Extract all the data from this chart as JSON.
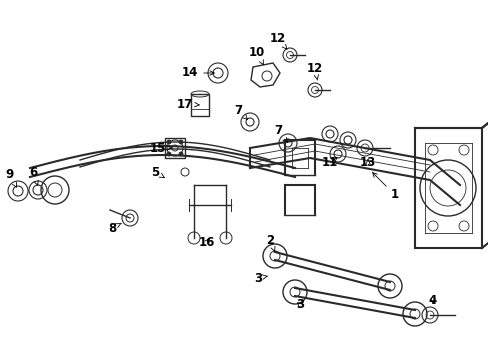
{
  "background_color": "#ffffff",
  "fig_width": 4.89,
  "fig_height": 3.6,
  "dpi": 100,
  "line_color": "#2a2a2a",
  "label_fontsize": 8.5,
  "label_color": "#000000"
}
